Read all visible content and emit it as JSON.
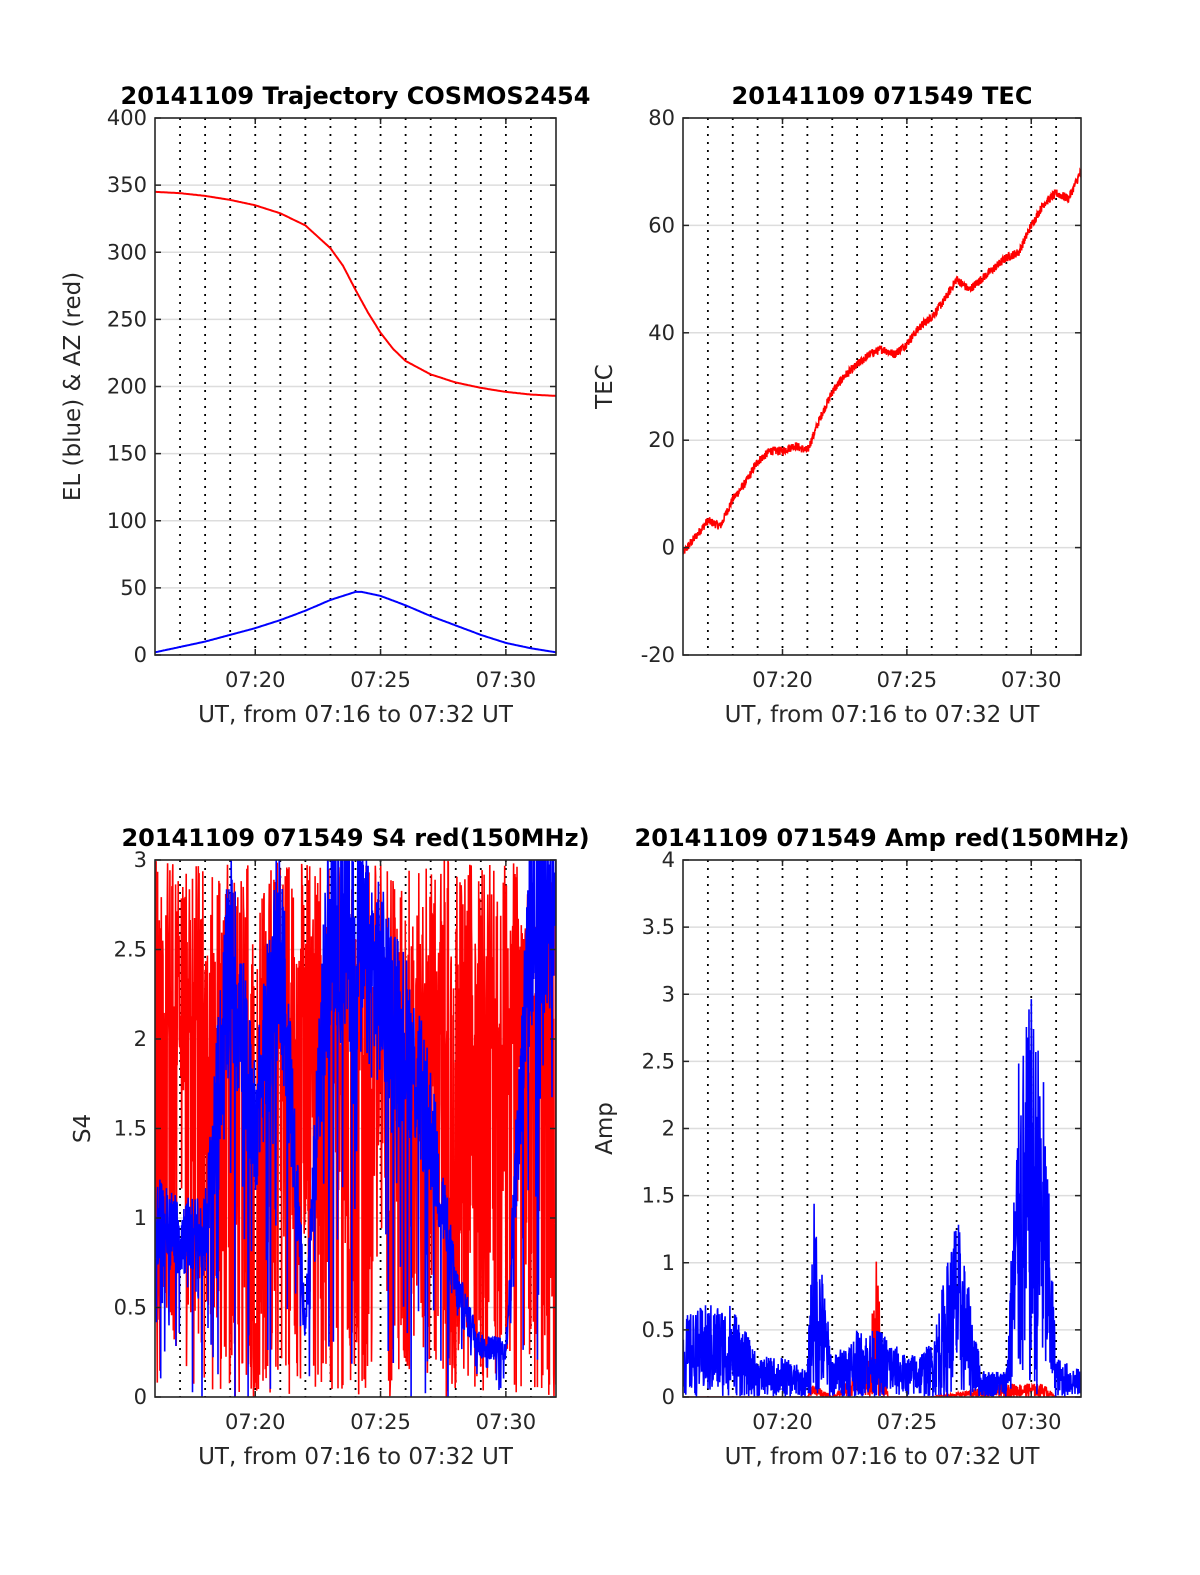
{
  "figure": {
    "time_range_label": "UT, from 07:16 to 07:32 UT"
  },
  "colors": {
    "red": "#ff0000",
    "blue": "#0000ff",
    "grid": "#000000",
    "axes": "#262626"
  },
  "chart_data": [
    {
      "id": "trajectory",
      "type": "line",
      "title": "20141109 Trajectory COSMOS2454",
      "xlabel": "UT, from 07:16 to 07:32 UT",
      "ylabel": "EL (blue) & AZ (red)",
      "xlim": [
        "07:16",
        "07:32"
      ],
      "ylim": [
        0,
        400
      ],
      "xticks": [
        "07:20",
        "07:25",
        "07:30"
      ],
      "yticks": [
        0,
        50,
        100,
        150,
        200,
        250,
        300,
        350,
        400
      ],
      "grid": "dotted vertical every minute, solid horizontal at y ticks",
      "series": [
        {
          "color": "#ff0000",
          "x": [
            "07:16",
            "07:17",
            "07:18",
            "07:19",
            "07:20",
            "07:21",
            "07:22",
            "07:23",
            "07:23:30",
            "07:24",
            "07:24:30",
            "07:25",
            "07:25:30",
            "07:26",
            "07:27",
            "07:28",
            "07:29",
            "07:30",
            "07:31",
            "07:32"
          ],
          "y": [
            345,
            344,
            342,
            339,
            335,
            329,
            320,
            303,
            290,
            272,
            255,
            240,
            228,
            219,
            209,
            203,
            199,
            196,
            194,
            193
          ]
        },
        {
          "color": "#0000ff",
          "x": [
            "07:16",
            "07:17",
            "07:18",
            "07:19",
            "07:20",
            "07:21",
            "07:22",
            "07:23",
            "07:24",
            "07:24:15",
            "07:25",
            "07:26",
            "07:27",
            "07:28",
            "07:29",
            "07:30",
            "07:31",
            "07:32"
          ],
          "y": [
            2,
            6,
            10,
            15,
            20,
            26,
            33,
            41,
            47,
            47,
            44,
            37,
            29,
            22,
            15,
            9,
            5,
            2
          ]
        }
      ]
    },
    {
      "id": "tec",
      "type": "line",
      "title": "20141109 071549 TEC",
      "xlabel": "UT, from 07:16 to 07:32 UT",
      "ylabel": "TEC",
      "xlim": [
        "07:16",
        "07:32"
      ],
      "ylim": [
        -20,
        80
      ],
      "xticks": [
        "07:20",
        "07:25",
        "07:30"
      ],
      "yticks": [
        -20,
        0,
        20,
        40,
        60,
        80
      ],
      "series": [
        {
          "color": "#ff0000",
          "x": [
            "07:16",
            "07:16:30",
            "07:17",
            "07:17:30",
            "07:18",
            "07:18:30",
            "07:19",
            "07:19:30",
            "07:20",
            "07:20:30",
            "07:21",
            "07:21:30",
            "07:22",
            "07:22:30",
            "07:23",
            "07:23:30",
            "07:24",
            "07:24:30",
            "07:25",
            "07:25:30",
            "07:26",
            "07:26:30",
            "07:27",
            "07:27:30",
            "07:28",
            "07:28:30",
            "07:29",
            "07:29:30",
            "07:30",
            "07:30:30",
            "07:31",
            "07:31:30",
            "07:32"
          ],
          "y": [
            -1,
            2,
            5,
            4,
            9,
            12,
            16,
            18,
            18,
            19,
            18,
            24,
            29,
            32,
            34,
            36,
            37,
            36,
            38,
            41,
            43,
            46,
            50,
            48,
            50,
            52,
            54,
            55,
            60,
            64,
            66,
            65,
            70
          ]
        }
      ]
    },
    {
      "id": "s4",
      "type": "line",
      "title": "20141109 071549 S4 red(150MHz)",
      "xlabel": "UT, from 07:16 to 07:32 UT",
      "ylabel": "S4",
      "xlim": [
        "07:16",
        "07:32"
      ],
      "ylim": [
        0,
        3
      ],
      "xticks": [
        "07:20",
        "07:25",
        "07:30"
      ],
      "yticks": [
        0,
        0.5,
        1,
        1.5,
        2,
        2.5,
        3
      ],
      "series": [
        {
          "color": "#ff0000",
          "note_values": "noisy, frequently saturating between 0 and 3",
          "x": [
            "07:16",
            "07:17",
            "07:18",
            "07:19",
            "07:20",
            "07:21",
            "07:22",
            "07:23",
            "07:24",
            "07:25",
            "07:26",
            "07:27",
            "07:28",
            "07:29",
            "07:30",
            "07:31",
            "07:32"
          ],
          "y": [
            1.0,
            2.8,
            2.2,
            2.9,
            0.5,
            2.6,
            1.2,
            2.8,
            0.8,
            2.9,
            1.3,
            2.7,
            0.6,
            2.8,
            2.5,
            2.9,
            0.4
          ]
        },
        {
          "color": "#0000ff",
          "x": [
            "07:16",
            "07:17",
            "07:18",
            "07:19",
            "07:20",
            "07:21",
            "07:22",
            "07:23",
            "07:24",
            "07:25",
            "07:26",
            "07:27",
            "07:28",
            "07:29",
            "07:30",
            "07:31",
            "07:32"
          ],
          "y": [
            1.0,
            0.9,
            0.9,
            2.5,
            1.5,
            2.6,
            0.4,
            2.8,
            2.5,
            2.3,
            2.0,
            1.5,
            0.6,
            0.28,
            0.27,
            2.7,
            2.9
          ]
        }
      ]
    },
    {
      "id": "amp",
      "type": "line",
      "title": "20141109 071549 Amp red(150MHz)",
      "xlabel": "UT, from 07:16 to 07:32 UT",
      "ylabel": "Amp",
      "xlim": [
        "07:16",
        "07:32"
      ],
      "ylim": [
        0,
        4
      ],
      "xticks": [
        "07:20",
        "07:25",
        "07:30"
      ],
      "yticks": [
        0,
        0.5,
        1,
        1.5,
        2,
        2.5,
        3,
        3.5,
        4
      ],
      "series": [
        {
          "color": "#ff0000",
          "x": [
            "07:16",
            "07:21",
            "07:21:15",
            "07:22",
            "07:23:30",
            "07:23:45",
            "07:24",
            "07:24:15",
            "07:26",
            "07:29",
            "07:29:30",
            "07:30",
            "07:30:30",
            "07:31",
            "07:32"
          ],
          "y": [
            0,
            0,
            0.1,
            0,
            0.3,
            1.1,
            0.4,
            0,
            0,
            0.1,
            0.1,
            0.1,
            0.1,
            0,
            0
          ]
        },
        {
          "color": "#0000ff",
          "x": [
            "07:16",
            "07:17",
            "07:18",
            "07:19",
            "07:20",
            "07:21",
            "07:21:15",
            "07:22",
            "07:23",
            "07:24",
            "07:25",
            "07:26",
            "07:27",
            "07:28",
            "07:29",
            "07:29:30",
            "07:30",
            "07:30:30",
            "07:31",
            "07:32"
          ],
          "y": [
            0.6,
            0.7,
            0.7,
            0.3,
            0.3,
            0.2,
            1.5,
            0.3,
            0.5,
            0.5,
            0.3,
            0.4,
            1.4,
            0.2,
            0.2,
            2.5,
            3.0,
            2.4,
            0.3,
            0.2
          ]
        }
      ]
    }
  ]
}
